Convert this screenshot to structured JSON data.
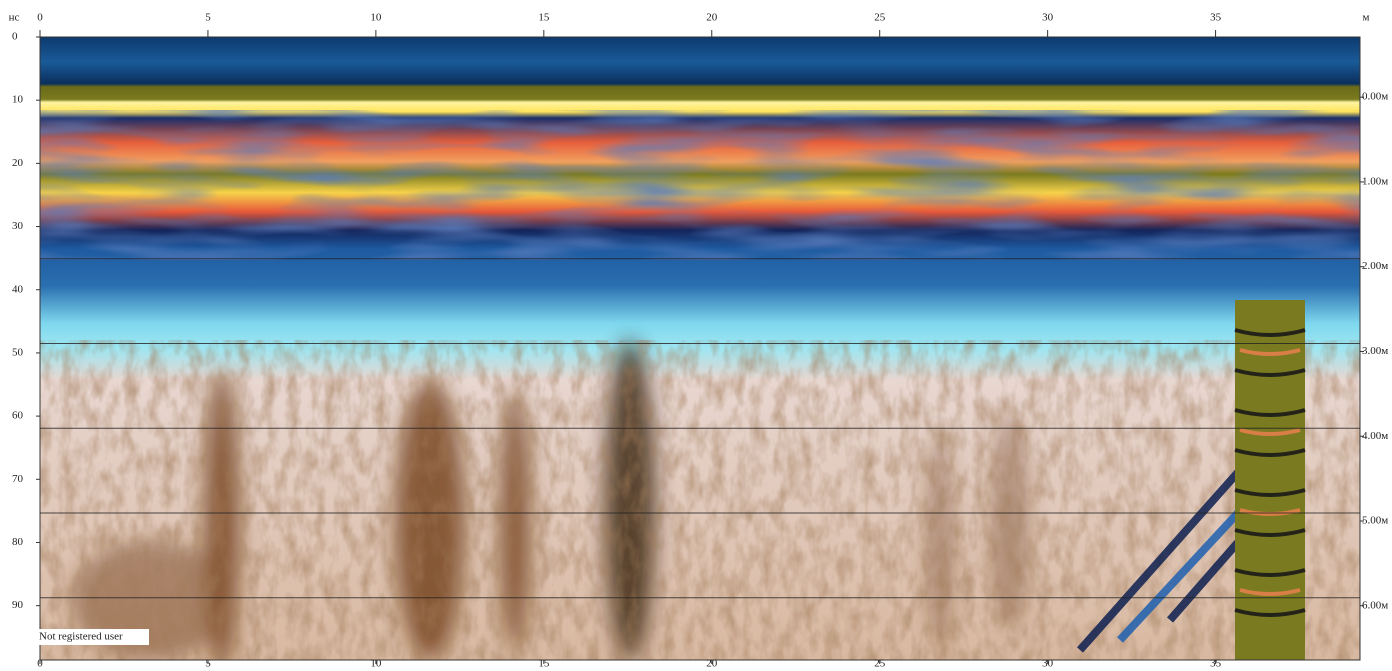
{
  "chart_data": {
    "type": "radargram",
    "x_unit": "м",
    "y_unit": "нс",
    "xlim": [
      0,
      39.3
    ],
    "xticks": [
      0,
      5,
      10,
      15,
      20,
      25,
      30,
      35
    ],
    "ylim": [
      0,
      98.6
    ],
    "yticks": [
      0,
      10,
      20,
      30,
      40,
      50,
      60,
      70,
      80,
      90
    ],
    "y2lim": [
      -0.71,
      6.64
    ],
    "y2ticks": [
      {
        "value": 0,
        "label": "0.00м"
      },
      {
        "value": 1,
        "label": "1.00м"
      },
      {
        "value": 2,
        "label": "2.00м"
      },
      {
        "value": 3,
        "label": "3.00м"
      },
      {
        "value": 4,
        "label": "4.00м"
      },
      {
        "value": 5,
        "label": "5.00м"
      },
      {
        "value": 6,
        "label": "6.00м"
      }
    ],
    "grid": true,
    "watermark": "Not registered user"
  }
}
